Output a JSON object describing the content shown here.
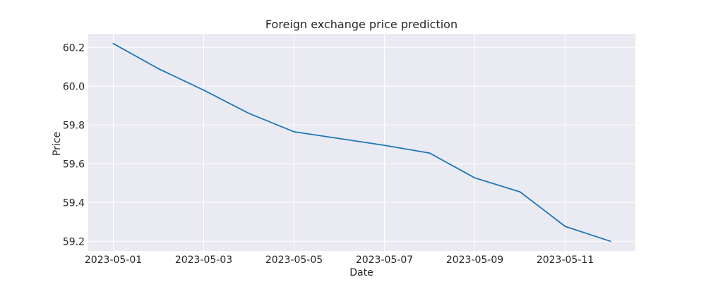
{
  "chart_data": {
    "type": "line",
    "title": "Foreign exchange price prediction",
    "xlabel": "Date",
    "ylabel": "Price",
    "x": [
      "2023-05-01",
      "2023-05-02",
      "2023-05-03",
      "2023-05-04",
      "2023-05-05",
      "2023-05-06",
      "2023-05-07",
      "2023-05-08",
      "2023-05-09",
      "2023-05-10",
      "2023-05-11",
      "2023-05-12"
    ],
    "series": [
      {
        "name": "Price",
        "color": "#1f77b4",
        "values": [
          60.22,
          60.09,
          59.98,
          59.86,
          59.765,
          59.73,
          59.695,
          59.655,
          59.527,
          59.455,
          59.277,
          59.2
        ]
      }
    ],
    "xticks": [
      "2023-05-01",
      "2023-05-03",
      "2023-05-05",
      "2023-05-07",
      "2023-05-09",
      "2023-05-11"
    ],
    "yticks": [
      59.2,
      59.4,
      59.6,
      59.8,
      60.0,
      60.2
    ],
    "ytick_labels": [
      "59.2",
      "59.4",
      "59.6",
      "59.8",
      "60.0",
      "60.2"
    ],
    "ylim": [
      59.15,
      60.27
    ],
    "grid": true,
    "background": "#eaeaf2",
    "grid_color": "#ffffff"
  }
}
